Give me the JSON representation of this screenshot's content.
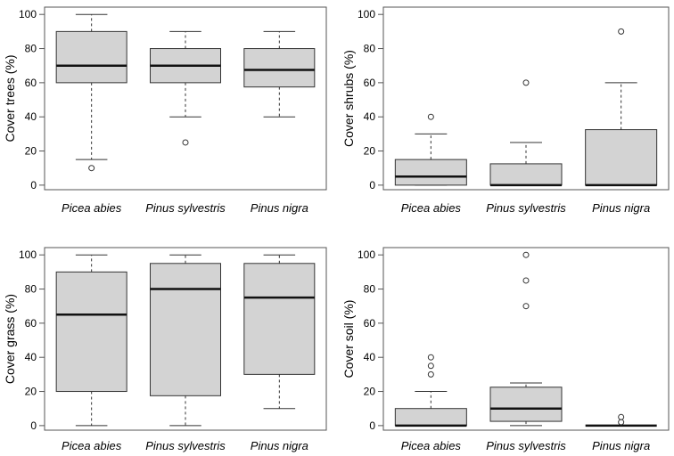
{
  "chart_data": [
    {
      "type": "boxplot",
      "ylabel": "Cover trees (%)",
      "ylim": [
        0,
        100
      ],
      "yticks": [
        "0",
        "20",
        "40",
        "60",
        "80",
        "100"
      ],
      "categories": [
        "Picea abies",
        "Pinus sylvestris",
        "Pinus nigra"
      ],
      "boxes": [
        {
          "whisker_low": 15,
          "q1": 60,
          "median": 70,
          "q3": 90,
          "whisker_high": 100,
          "outliers": [
            10
          ]
        },
        {
          "whisker_low": 40,
          "q1": 60,
          "median": 70,
          "q3": 80,
          "whisker_high": 90,
          "outliers": [
            25
          ]
        },
        {
          "whisker_low": 40,
          "q1": 57.5,
          "median": 67.5,
          "q3": 80,
          "whisker_high": 90,
          "outliers": []
        }
      ]
    },
    {
      "type": "boxplot",
      "ylabel": "Cover shrubs (%)",
      "ylim": [
        0,
        100
      ],
      "yticks": [
        "0",
        "20",
        "40",
        "60",
        "80",
        "100"
      ],
      "categories": [
        "Picea abies",
        "Pinus sylvestris",
        "Pinus nigra"
      ],
      "boxes": [
        {
          "whisker_low": 0,
          "q1": 0,
          "median": 5,
          "q3": 15,
          "whisker_high": 30,
          "outliers": [
            40
          ]
        },
        {
          "whisker_low": 0,
          "q1": 0,
          "median": 0,
          "q3": 12.5,
          "whisker_high": 25,
          "outliers": [
            60
          ]
        },
        {
          "whisker_low": 0,
          "q1": 0,
          "median": 0,
          "q3": 32.5,
          "whisker_high": 60,
          "outliers": [
            90
          ]
        }
      ]
    },
    {
      "type": "boxplot",
      "ylabel": "Cover grass (%)",
      "ylim": [
        0,
        100
      ],
      "yticks": [
        "0",
        "20",
        "40",
        "60",
        "80",
        "100"
      ],
      "categories": [
        "Picea abies",
        "Pinus sylvestris",
        "Pinus nigra"
      ],
      "boxes": [
        {
          "whisker_low": 0,
          "q1": 20,
          "median": 65,
          "q3": 90,
          "whisker_high": 100,
          "outliers": []
        },
        {
          "whisker_low": 0,
          "q1": 17.5,
          "median": 80,
          "q3": 95,
          "whisker_high": 100,
          "outliers": []
        },
        {
          "whisker_low": 10,
          "q1": 30,
          "median": 75,
          "q3": 95,
          "whisker_high": 100,
          "outliers": []
        }
      ]
    },
    {
      "type": "boxplot",
      "ylabel": "Cover soil (%)",
      "ylim": [
        0,
        100
      ],
      "yticks": [
        "0",
        "20",
        "40",
        "60",
        "80",
        "100"
      ],
      "categories": [
        "Picea abies",
        "Pinus sylvestris",
        "Pinus nigra"
      ],
      "boxes": [
        {
          "whisker_low": 0,
          "q1": 0,
          "median": 0,
          "q3": 10,
          "whisker_high": 20,
          "outliers": [
            30,
            35,
            40
          ]
        },
        {
          "whisker_low": 0,
          "q1": 2.5,
          "median": 10,
          "q3": 22.5,
          "whisker_high": 25,
          "outliers": [
            70,
            85,
            100
          ]
        },
        {
          "whisker_low": 0,
          "q1": 0,
          "median": 0,
          "q3": 0,
          "whisker_high": 0,
          "outliers": [
            2,
            5
          ]
        }
      ]
    }
  ],
  "colors": {
    "box_fill": "#d3d3d3",
    "box_stroke": "#333333",
    "median": "#111111",
    "axis": "#555555"
  }
}
